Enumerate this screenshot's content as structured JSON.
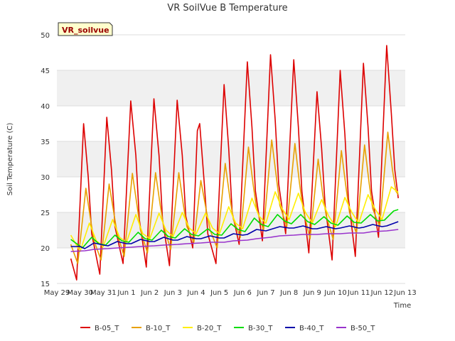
{
  "chart_data": {
    "type": "line",
    "title": "VR SoilVue B Temperature",
    "xlabel": "Time",
    "ylabel": "Soil Temperature (C)",
    "badge": "VR_soilvue",
    "ylim": [
      15,
      50
    ],
    "yticks": [
      15,
      20,
      25,
      30,
      35,
      40,
      45,
      50
    ],
    "xlim": [
      0,
      15
    ],
    "xticks": [
      {
        "x": 0,
        "label": "May 29"
      },
      {
        "x": 1,
        "label": "May 30"
      },
      {
        "x": 2,
        "label": "May 31"
      },
      {
        "x": 3,
        "label": "Jun 1"
      },
      {
        "x": 4,
        "label": "Jun 2"
      },
      {
        "x": 5,
        "label": "Jun 3"
      },
      {
        "x": 6,
        "label": "Jun 4"
      },
      {
        "x": 7,
        "label": "Jun 5"
      },
      {
        "x": 8,
        "label": "Jun 6"
      },
      {
        "x": 9,
        "label": "Jun 7"
      },
      {
        "x": 10,
        "label": "Jun 8"
      },
      {
        "x": 11,
        "label": "Jun 9"
      },
      {
        "x": 12,
        "label": "Jun 10"
      },
      {
        "x": 13,
        "label": "Jun 11"
      },
      {
        "x": 14,
        "label": "Jun 12"
      },
      {
        "x": 15,
        "label": "Jun 13"
      }
    ],
    "grid": true,
    "legend_position": "bottom",
    "x_unit": "days since May 29",
    "series": [
      {
        "name": "B-05_T",
        "color": "#dd0000",
        "points": [
          [
            0.6,
            18.5
          ],
          [
            0.85,
            15.5
          ],
          [
            1.15,
            37.5
          ],
          [
            1.35,
            30
          ],
          [
            1.5,
            22
          ],
          [
            1.85,
            16.3
          ],
          [
            2.15,
            38.4
          ],
          [
            2.35,
            31
          ],
          [
            2.5,
            23
          ],
          [
            2.85,
            17.8
          ],
          [
            3.18,
            40.7
          ],
          [
            3.4,
            33
          ],
          [
            3.55,
            24
          ],
          [
            3.85,
            17.3
          ],
          [
            4.18,
            41
          ],
          [
            4.4,
            33
          ],
          [
            4.55,
            24
          ],
          [
            4.85,
            17.5
          ],
          [
            5.18,
            40.8
          ],
          [
            5.4,
            33
          ],
          [
            5.55,
            24.5
          ],
          [
            5.85,
            20
          ],
          [
            6.05,
            36.5
          ],
          [
            6.15,
            37.5
          ],
          [
            6.35,
            29
          ],
          [
            6.5,
            22
          ],
          [
            6.85,
            17.8
          ],
          [
            7.2,
            43
          ],
          [
            7.4,
            34
          ],
          [
            7.55,
            25
          ],
          [
            7.85,
            20.5
          ],
          [
            8.2,
            46.2
          ],
          [
            8.4,
            37
          ],
          [
            8.55,
            28
          ],
          [
            8.85,
            21
          ],
          [
            9.2,
            47.2
          ],
          [
            9.4,
            38
          ],
          [
            9.55,
            29
          ],
          [
            9.85,
            22
          ],
          [
            10.2,
            46.5
          ],
          [
            10.4,
            37
          ],
          [
            10.55,
            28
          ],
          [
            10.85,
            19.3
          ],
          [
            11.2,
            42
          ],
          [
            11.4,
            34
          ],
          [
            11.55,
            26
          ],
          [
            11.85,
            18.3
          ],
          [
            12.2,
            45
          ],
          [
            12.4,
            36
          ],
          [
            12.55,
            27
          ],
          [
            12.85,
            18.8
          ],
          [
            13.2,
            46
          ],
          [
            13.4,
            37
          ],
          [
            13.55,
            28
          ],
          [
            13.85,
            21.5
          ],
          [
            14.2,
            48.5
          ],
          [
            14.4,
            39
          ],
          [
            14.55,
            31
          ],
          [
            14.7,
            27
          ]
        ]
      },
      {
        "name": "B-10_T",
        "color": "#e8a000",
        "points": [
          [
            0.6,
            20.5
          ],
          [
            0.9,
            17.8
          ],
          [
            1.25,
            28.4
          ],
          [
            1.45,
            24
          ],
          [
            1.6,
            21
          ],
          [
            1.9,
            18.3
          ],
          [
            2.25,
            29
          ],
          [
            2.45,
            25
          ],
          [
            2.6,
            22
          ],
          [
            2.9,
            18.8
          ],
          [
            3.25,
            30.5
          ],
          [
            3.45,
            26
          ],
          [
            3.6,
            22.5
          ],
          [
            3.9,
            19.3
          ],
          [
            4.25,
            30.6
          ],
          [
            4.45,
            26
          ],
          [
            4.6,
            23
          ],
          [
            4.9,
            19.8
          ],
          [
            5.25,
            30.6
          ],
          [
            5.45,
            26
          ],
          [
            5.6,
            23
          ],
          [
            5.9,
            20.8
          ],
          [
            6.2,
            29.5
          ],
          [
            6.45,
            25
          ],
          [
            6.6,
            22.5
          ],
          [
            6.9,
            20
          ],
          [
            7.25,
            31.9
          ],
          [
            7.45,
            27
          ],
          [
            7.6,
            24
          ],
          [
            7.9,
            21.5
          ],
          [
            8.25,
            34.2
          ],
          [
            8.45,
            29
          ],
          [
            8.6,
            25.5
          ],
          [
            8.9,
            22.5
          ],
          [
            9.25,
            35.2
          ],
          [
            9.45,
            30
          ],
          [
            9.6,
            26
          ],
          [
            9.9,
            23
          ],
          [
            10.25,
            34.7
          ],
          [
            10.45,
            29
          ],
          [
            10.6,
            25.5
          ],
          [
            10.9,
            21.3
          ],
          [
            11.25,
            32.5
          ],
          [
            11.45,
            27.5
          ],
          [
            11.6,
            24.5
          ],
          [
            11.9,
            21.2
          ],
          [
            12.25,
            33.7
          ],
          [
            12.45,
            28.5
          ],
          [
            12.6,
            25
          ],
          [
            12.9,
            22
          ],
          [
            13.25,
            34.5
          ],
          [
            13.45,
            29
          ],
          [
            13.6,
            25.5
          ],
          [
            13.9,
            23
          ],
          [
            14.25,
            36.3
          ],
          [
            14.45,
            31
          ],
          [
            14.6,
            28
          ],
          [
            14.7,
            27.5
          ]
        ]
      },
      {
        "name": "B-20_T",
        "color": "#ffee00",
        "points": [
          [
            0.6,
            21.8
          ],
          [
            1.0,
            19.5
          ],
          [
            1.4,
            23.5
          ],
          [
            1.7,
            21
          ],
          [
            2.0,
            20.2
          ],
          [
            2.4,
            24
          ],
          [
            2.7,
            21.5
          ],
          [
            3.0,
            20.8
          ],
          [
            3.4,
            24.7
          ],
          [
            3.7,
            22
          ],
          [
            4.0,
            21.3
          ],
          [
            4.4,
            24.9
          ],
          [
            4.7,
            22.5
          ],
          [
            5.0,
            21.6
          ],
          [
            5.4,
            25
          ],
          [
            5.7,
            22.8
          ],
          [
            6.0,
            22
          ],
          [
            6.4,
            24.9
          ],
          [
            6.7,
            22.8
          ],
          [
            7.0,
            22
          ],
          [
            7.4,
            25.8
          ],
          [
            7.7,
            23.5
          ],
          [
            8.0,
            22.7
          ],
          [
            8.4,
            27
          ],
          [
            8.7,
            24.5
          ],
          [
            9.0,
            23.5
          ],
          [
            9.4,
            27.9
          ],
          [
            9.7,
            25.5
          ],
          [
            10.0,
            24
          ],
          [
            10.4,
            27.7
          ],
          [
            10.7,
            25
          ],
          [
            11.0,
            23.5
          ],
          [
            11.4,
            26.8
          ],
          [
            11.7,
            24.5
          ],
          [
            12.0,
            23
          ],
          [
            12.4,
            27.1
          ],
          [
            12.7,
            25
          ],
          [
            13.0,
            23.5
          ],
          [
            13.4,
            27.5
          ],
          [
            13.7,
            25.5
          ],
          [
            14.0,
            24
          ],
          [
            14.4,
            28.6
          ],
          [
            14.7,
            27.8
          ]
        ]
      },
      {
        "name": "B-30_T",
        "color": "#00dd00",
        "points": [
          [
            0.6,
            21.2
          ],
          [
            1.1,
            20
          ],
          [
            1.5,
            21.5
          ],
          [
            1.8,
            20.6
          ],
          [
            2.1,
            20.4
          ],
          [
            2.5,
            21.8
          ],
          [
            2.8,
            21
          ],
          [
            3.1,
            20.8
          ],
          [
            3.5,
            22.2
          ],
          [
            3.8,
            21.3
          ],
          [
            4.1,
            21.1
          ],
          [
            4.5,
            22.5
          ],
          [
            4.8,
            21.6
          ],
          [
            5.1,
            21.4
          ],
          [
            5.5,
            22.7
          ],
          [
            5.8,
            21.9
          ],
          [
            6.1,
            21.7
          ],
          [
            6.5,
            22.7
          ],
          [
            6.8,
            21.9
          ],
          [
            7.1,
            21.8
          ],
          [
            7.5,
            23.4
          ],
          [
            7.8,
            22.6
          ],
          [
            8.1,
            22.3
          ],
          [
            8.5,
            24.2
          ],
          [
            8.8,
            23.3
          ],
          [
            9.1,
            23
          ],
          [
            9.5,
            24.7
          ],
          [
            9.8,
            23.8
          ],
          [
            10.1,
            23.4
          ],
          [
            10.5,
            24.7
          ],
          [
            10.8,
            23.7
          ],
          [
            11.1,
            23.3
          ],
          [
            11.5,
            24.4
          ],
          [
            11.8,
            23.5
          ],
          [
            12.1,
            23.2
          ],
          [
            12.5,
            24.5
          ],
          [
            12.8,
            23.6
          ],
          [
            13.1,
            23.5
          ],
          [
            13.5,
            24.7
          ],
          [
            13.8,
            23.8
          ],
          [
            14.1,
            23.9
          ],
          [
            14.5,
            25.2
          ],
          [
            14.7,
            25.4
          ]
        ]
      },
      {
        "name": "B-40_T",
        "color": "#0000aa",
        "points": [
          [
            0.6,
            20.2
          ],
          [
            1.0,
            20.2
          ],
          [
            1.2,
            19.9
          ],
          [
            1.6,
            20.7
          ],
          [
            2.0,
            20.4
          ],
          [
            2.2,
            20.3
          ],
          [
            2.6,
            20.9
          ],
          [
            3.0,
            20.6
          ],
          [
            3.2,
            20.6
          ],
          [
            3.6,
            21.2
          ],
          [
            4.0,
            20.9
          ],
          [
            4.2,
            20.9
          ],
          [
            4.6,
            21.5
          ],
          [
            5.0,
            21.1
          ],
          [
            5.2,
            21.1
          ],
          [
            5.6,
            21.6
          ],
          [
            6.0,
            21.3
          ],
          [
            6.2,
            21.3
          ],
          [
            6.6,
            21.7
          ],
          [
            7.0,
            21.4
          ],
          [
            7.2,
            21.4
          ],
          [
            7.6,
            22.0
          ],
          [
            8.0,
            21.8
          ],
          [
            8.2,
            21.9
          ],
          [
            8.6,
            22.6
          ],
          [
            9.0,
            22.4
          ],
          [
            9.2,
            22.6
          ],
          [
            9.6,
            23.0
          ],
          [
            10.0,
            22.8
          ],
          [
            10.2,
            22.8
          ],
          [
            10.6,
            23.1
          ],
          [
            11.0,
            22.7
          ],
          [
            11.2,
            22.7
          ],
          [
            11.6,
            23.0
          ],
          [
            12.0,
            22.7
          ],
          [
            12.2,
            22.8
          ],
          [
            12.6,
            23.1
          ],
          [
            13.0,
            22.8
          ],
          [
            13.2,
            22.9
          ],
          [
            13.6,
            23.3
          ],
          [
            14.0,
            23.0
          ],
          [
            14.2,
            23.1
          ],
          [
            14.7,
            23.7
          ]
        ]
      },
      {
        "name": "B-50_T",
        "color": "#9933cc",
        "points": [
          [
            0.6,
            19.5
          ],
          [
            1.2,
            19.6
          ],
          [
            1.6,
            19.8
          ],
          [
            2.2,
            19.9
          ],
          [
            2.6,
            20.0
          ],
          [
            3.2,
            20.1
          ],
          [
            3.6,
            20.2
          ],
          [
            4.2,
            20.3
          ],
          [
            4.6,
            20.4
          ],
          [
            5.2,
            20.5
          ],
          [
            5.6,
            20.6
          ],
          [
            6.2,
            20.7
          ],
          [
            6.6,
            20.8
          ],
          [
            7.2,
            20.8
          ],
          [
            7.6,
            21.0
          ],
          [
            8.2,
            21.1
          ],
          [
            8.6,
            21.3
          ],
          [
            9.2,
            21.5
          ],
          [
            9.6,
            21.7
          ],
          [
            10.2,
            21.8
          ],
          [
            10.6,
            21.9
          ],
          [
            11.2,
            21.9
          ],
          [
            11.6,
            22.0
          ],
          [
            12.2,
            22.0
          ],
          [
            12.6,
            22.1
          ],
          [
            13.2,
            22.1
          ],
          [
            13.6,
            22.3
          ],
          [
            14.2,
            22.4
          ],
          [
            14.7,
            22.6
          ]
        ]
      }
    ]
  }
}
